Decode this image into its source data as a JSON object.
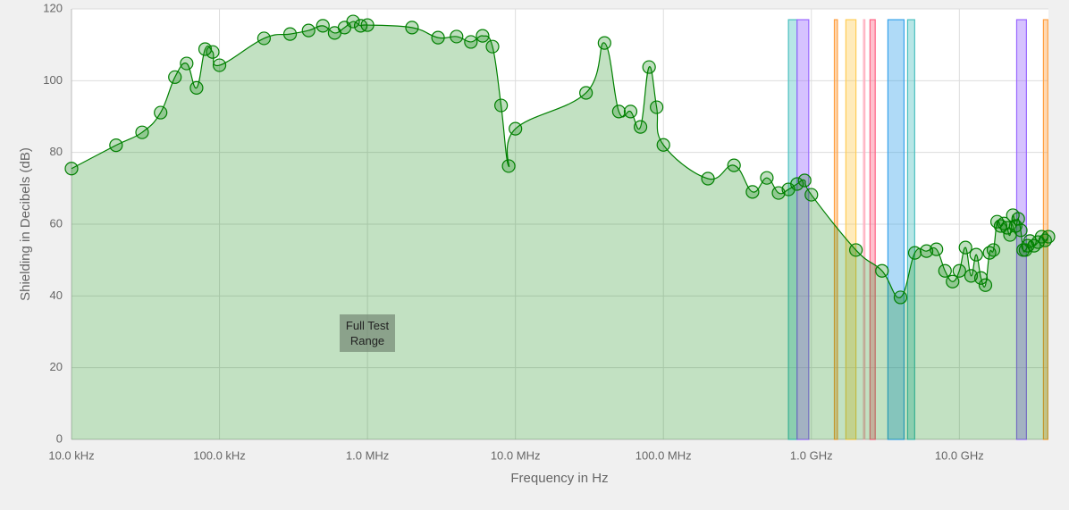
{
  "chart_data": {
    "type": "area",
    "x_label": "Frequency in Hz",
    "y_label": "Shielding in Decibels (dB)",
    "annotation": "Full Test Range",
    "x_scale": "log",
    "grid": true,
    "xlim": [
      10000,
      40000000000
    ],
    "ylim": [
      0,
      120
    ],
    "xticks": [
      {
        "value": 10000,
        "label": "10.0 kHz"
      },
      {
        "value": 100000,
        "label": "100.0 kHz"
      },
      {
        "value": 1000000,
        "label": "1.0 MHz"
      },
      {
        "value": 10000000,
        "label": "10.0 MHz"
      },
      {
        "value": 100000000,
        "label": "100.0 MHz"
      },
      {
        "value": 1000000000,
        "label": "1.0 GHz"
      },
      {
        "value": 10000000000,
        "label": "10.0 GHz"
      }
    ],
    "yticks": [
      0,
      20,
      40,
      60,
      80,
      100,
      120
    ],
    "series": [
      {
        "color": "#008000",
        "x": [
          10000,
          20000,
          30000,
          40000,
          50000,
          60000,
          70000,
          80000,
          90000,
          100000,
          200000,
          300000,
          400000,
          500000,
          600000,
          700000,
          800000,
          900000,
          1000000,
          2000000,
          3000000,
          4000000,
          5000000,
          6000000,
          7000000,
          8000000,
          9000000,
          10000000,
          30000000,
          40000000,
          50000000,
          60000000,
          70000000,
          80000000,
          90000000,
          100000000,
          200000000,
          300000000,
          400000000,
          500000000,
          600000000,
          700000000,
          800000000,
          900000000,
          1000000000,
          2000000000,
          3000000000,
          4000000000,
          5000000000,
          6000000000,
          7000000000,
          8000000000,
          9000000000,
          10000000000,
          11000000000,
          12000000000,
          13000000000,
          14000000000,
          15000000000,
          16000000000,
          17000000000,
          18000000000,
          19000000000,
          20000000000,
          21000000000,
          22000000000,
          23000000000,
          24000000000,
          25000000000,
          26000000000,
          27000000000,
          28000000000,
          29000000000,
          30000000000,
          32000000000,
          34000000000,
          36000000000,
          38000000000,
          40000000000
        ],
        "values": [
          75.5,
          82,
          85.6,
          91.1,
          101,
          104.8,
          98,
          108.8,
          108,
          104.3,
          111.8,
          113,
          114,
          115.3,
          113.3,
          114.8,
          116.5,
          115.3,
          115.5,
          114.8,
          112,
          112.3,
          110.8,
          112.5,
          109.5,
          93.1,
          76.2,
          86.6,
          96.6,
          110.5,
          91.4,
          91.4,
          87.1,
          103.8,
          92.6,
          82.1,
          72.7,
          76.4,
          69,
          72.9,
          68.7,
          69.7,
          71.2,
          72.2,
          68.2,
          52.8,
          47,
          39.6,
          52,
          52.5,
          53,
          47,
          44,
          47,
          53.5,
          45.6,
          51.5,
          45,
          43,
          52,
          52.8,
          60.7,
          59.5,
          60.2,
          59,
          57,
          62.5,
          59.5,
          61.5,
          58.3,
          52.8,
          52.8,
          54,
          55.3,
          54,
          55,
          56.5,
          55.5,
          56.5
        ]
      }
    ],
    "bands": [
      {
        "start": 700000000,
        "end": 800000000,
        "top": 117,
        "color": "#4bc0c0"
      },
      {
        "start": 800000000,
        "end": 960000000,
        "top": 117,
        "color": "#9966ff"
      },
      {
        "start": 1430000000,
        "end": 1500000000,
        "top": 117,
        "color": "#ff9f40"
      },
      {
        "start": 1710000000,
        "end": 2000000000,
        "top": 117,
        "color": "#ffcd56"
      },
      {
        "start": 2250000000,
        "end": 2300000000,
        "top": 117,
        "color": "#ffb1c1"
      },
      {
        "start": 2490000000,
        "end": 2700000000,
        "top": 117,
        "color": "#ff6384"
      },
      {
        "start": 3290000000,
        "end": 4230000000,
        "top": 117,
        "color": "#36a2eb"
      },
      {
        "start": 4470000000,
        "end": 4990000000,
        "top": 117,
        "color": "#4bc0c0"
      },
      {
        "start": 24400000000,
        "end": 28400000000,
        "top": 117,
        "color": "#9966ff"
      },
      {
        "start": 37000000000,
        "end": 39600000000,
        "top": 117,
        "color": "#ff9f40"
      }
    ]
  }
}
